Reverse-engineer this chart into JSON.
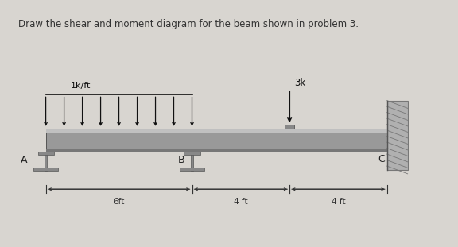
{
  "title": "Draw the shear and moment diagram for the beam shown in problem 3.",
  "title_fontsize": 8.5,
  "title_color": "#333333",
  "header_bg": "#d8d5d0",
  "diagram_bg": "#dddbd8",
  "beam_facecolor": "#999999",
  "beam_top_stripe": "#c8c8c8",
  "beam_bot_stripe": "#777777",
  "wall_facecolor": "#aaaaaa",
  "wall_edge_color": "#888888",
  "arrow_color": "#111111",
  "support_color": "#888888",
  "support_edge": "#555555",
  "dim_color": "#333333",
  "label_A": "A",
  "label_B": "B",
  "label_C": "C",
  "dist_load_label": "1k/ft",
  "point_load_label": "3k",
  "dim_6ft": "6ft",
  "dim_4ft_1": "4 ft",
  "dim_4ft_2": "4 ft",
  "num_dist_arrows": 9
}
